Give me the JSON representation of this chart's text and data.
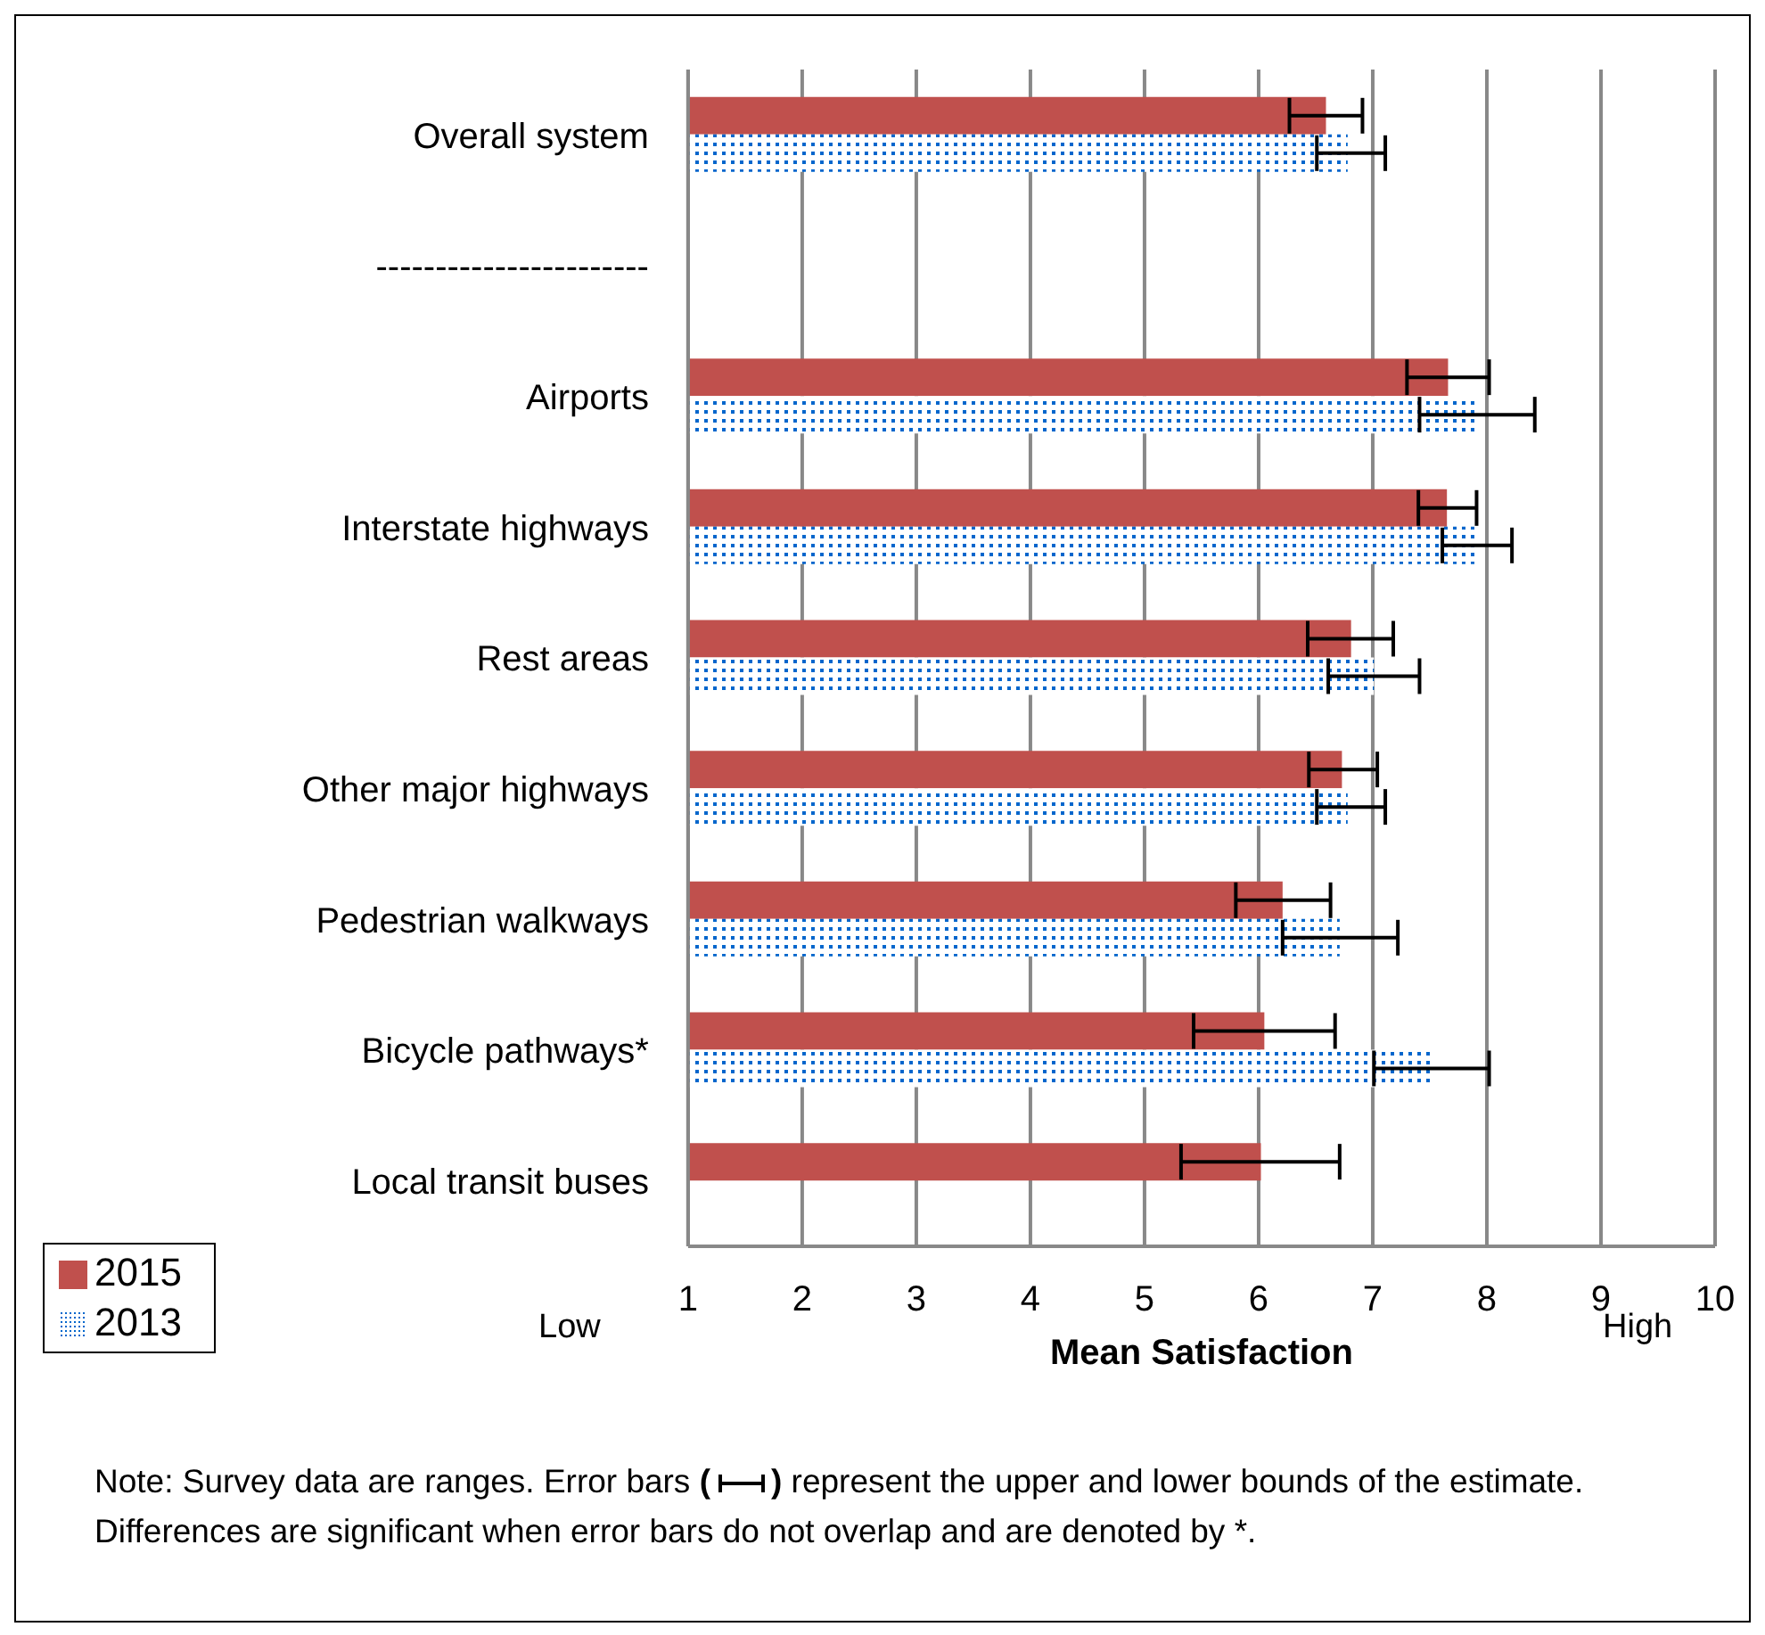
{
  "chart_data": {
    "type": "bar",
    "orientation": "horizontal",
    "xlabel": "Mean Satisfaction",
    "categories": [
      "Overall system",
      "-----------------------",
      "Airports",
      "Interstate highways",
      "Rest areas",
      "Other major highways",
      "Pedestrian walkways",
      "Bicycle pathways*",
      "Local transit buses"
    ],
    "series": [
      {
        "name": "2015",
        "color": "#c0504d",
        "values": [
          6.59,
          null,
          7.66,
          7.65,
          6.81,
          6.73,
          6.21,
          6.05,
          6.02
        ],
        "errors": [
          [
            6.27,
            6.91
          ],
          null,
          [
            7.3,
            8.02
          ],
          [
            7.4,
            7.91
          ],
          [
            6.43,
            7.18
          ],
          [
            6.44,
            7.04
          ],
          [
            5.8,
            6.63
          ],
          [
            5.43,
            6.67
          ],
          [
            5.32,
            6.71
          ]
        ]
      },
      {
        "name": "2013",
        "color": "#0066cc",
        "values": [
          6.78,
          null,
          7.91,
          7.91,
          7.01,
          6.78,
          6.71,
          7.52,
          null
        ],
        "errors": [
          [
            6.51,
            7.11
          ],
          null,
          [
            7.41,
            8.42
          ],
          [
            7.61,
            8.22
          ],
          [
            6.61,
            7.41
          ],
          [
            6.51,
            7.11
          ],
          [
            6.21,
            7.22
          ],
          [
            7.01,
            8.02
          ],
          null
        ]
      }
    ],
    "xlim": [
      1,
      10
    ],
    "xticks": [
      1,
      2,
      3,
      4,
      5,
      6,
      7,
      8,
      9,
      10
    ],
    "grid": "x",
    "legend": "bottom left",
    "annotations": [
      "Low",
      "High",
      "Note:  Survey data are ranges.  Error bars (",
      ") represent the upper and lower bounds of the estimate. Differences are significant when error bars do not overlap and are denoted by *."
    ]
  }
}
